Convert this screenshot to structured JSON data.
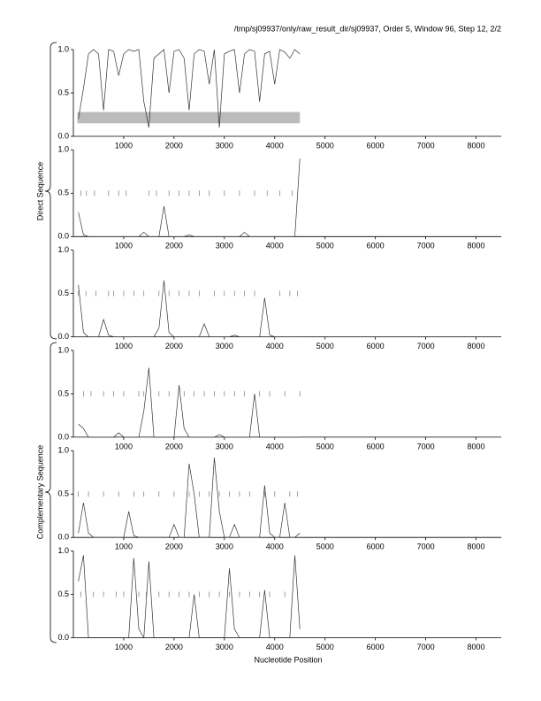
{
  "header": {
    "title": "/tmp/sj09937/only/raw_result_dir/sj09937, Order 5, Window 96, Step 12, 2/2"
  },
  "axis_labels": {
    "x": "Nucleotide Position",
    "direct": "Direct Sequence",
    "complementary": "Complementary Sequence"
  },
  "chart_data": [
    {
      "type": "line",
      "color": "#333333",
      "x": [
        100,
        200,
        300,
        400,
        500,
        600,
        700,
        800,
        900,
        1000,
        1100,
        1200,
        1300,
        1400,
        1500,
        1600,
        1700,
        1800,
        1900,
        2000,
        2100,
        2200,
        2300,
        2400,
        2500,
        2600,
        2700,
        2800,
        2900,
        3000,
        3100,
        3200,
        3300,
        3400,
        3500,
        3600,
        3700,
        3800,
        3900,
        4000,
        4100,
        4200,
        4300,
        4400,
        4500
      ],
      "values": [
        0.2,
        0.55,
        0.95,
        1.0,
        0.95,
        0.3,
        1.0,
        0.98,
        0.7,
        0.95,
        1.0,
        0.98,
        1.0,
        0.4,
        0.1,
        0.9,
        0.95,
        1.0,
        0.5,
        0.98,
        1.0,
        0.9,
        0.3,
        0.95,
        1.0,
        0.98,
        0.6,
        1.0,
        0.1,
        0.95,
        0.98,
        1.0,
        0.5,
        0.95,
        1.0,
        0.98,
        0.4,
        0.95,
        0.98,
        0.6,
        1.0,
        0.97,
        0.9,
        1.0,
        0.95
      ],
      "region": {
        "x": [
          80,
          4500
        ],
        "y": [
          0.15,
          0.28
        ],
        "color": "#bbbbbb"
      },
      "marks": [],
      "xlim": [
        0,
        8500
      ],
      "ylim": [
        0,
        1
      ],
      "xticks": [
        1000,
        2000,
        3000,
        4000,
        5000,
        6000,
        7000,
        8000
      ],
      "yticks": [
        {
          "value": 0,
          "label": "0.0"
        },
        0.5,
        {
          "value": 1,
          "label": "1.0"
        }
      ]
    },
    {
      "type": "line",
      "color": "#333333",
      "x": [
        100,
        200,
        300,
        400,
        500,
        600,
        700,
        800,
        900,
        1000,
        1100,
        1200,
        1300,
        1400,
        1500,
        1600,
        1700,
        1800,
        1900,
        2000,
        2100,
        2200,
        2300,
        2400,
        2500,
        2600,
        2700,
        2800,
        2900,
        3000,
        3100,
        3200,
        3300,
        3400,
        3500,
        3600,
        3700,
        3800,
        3900,
        4000,
        4100,
        4200,
        4300,
        4400,
        4500
      ],
      "values": [
        0.28,
        0.02,
        0,
        0,
        0,
        0,
        0,
        0,
        0,
        0,
        0,
        0,
        0,
        0.05,
        0,
        0,
        0,
        0.35,
        0,
        0,
        0,
        0,
        0.02,
        0,
        0,
        0,
        0,
        0,
        0,
        0,
        0,
        0,
        0,
        0.05,
        0,
        0,
        0,
        0,
        0,
        0,
        0,
        0,
        0,
        0,
        0.9
      ],
      "marks": [
        150,
        260,
        420,
        700,
        900,
        1050,
        1500,
        1650,
        1900,
        2100,
        2300,
        2500,
        2700,
        3000,
        3300,
        3600,
        3850,
        4100,
        4350
      ],
      "xlim": [
        0,
        8500
      ],
      "ylim": [
        0,
        1
      ],
      "xticks": [
        1000,
        2000,
        3000,
        4000,
        5000,
        6000,
        7000,
        8000
      ],
      "yticks": [
        {
          "value": 0,
          "label": "0.0"
        },
        0.5,
        {
          "value": 1,
          "label": "1.0"
        }
      ]
    },
    {
      "type": "line",
      "color": "#333333",
      "x": [
        100,
        200,
        300,
        400,
        500,
        600,
        700,
        800,
        900,
        1000,
        1100,
        1200,
        1300,
        1400,
        1500,
        1600,
        1700,
        1800,
        1900,
        2000,
        2100,
        2200,
        2300,
        2400,
        2500,
        2600,
        2700,
        2800,
        2900,
        3000,
        3100,
        3200,
        3300,
        3400,
        3500,
        3600,
        3700,
        3800,
        3900,
        4000,
        4100,
        4200,
        4300,
        4400,
        4500
      ],
      "values": [
        0.6,
        0.05,
        0,
        0,
        0,
        0.2,
        0.02,
        0,
        0,
        0,
        0,
        0,
        0,
        0,
        0,
        0,
        0.1,
        0.65,
        0.05,
        0,
        0,
        0,
        0,
        0,
        0,
        0.15,
        0,
        0,
        0,
        0,
        0,
        0.02,
        0,
        0,
        0,
        0,
        0,
        0.45,
        0.02,
        0,
        0,
        0,
        0,
        0,
        0
      ],
      "marks": [
        100,
        250,
        450,
        700,
        800,
        1000,
        1200,
        1400,
        1700,
        1900,
        2100,
        2300,
        2500,
        2800,
        3000,
        3200,
        3400,
        3600,
        4100,
        4300,
        4450
      ],
      "xlim": [
        0,
        8500
      ],
      "ylim": [
        0,
        1
      ],
      "xticks": [
        1000,
        2000,
        3000,
        4000,
        5000,
        6000,
        7000,
        8000
      ],
      "yticks": [
        {
          "value": 0,
          "label": "0.0"
        },
        0.5,
        {
          "value": 1,
          "label": "1.0"
        }
      ]
    },
    {
      "type": "line",
      "color": "#333333",
      "x": [
        100,
        200,
        300,
        400,
        500,
        600,
        700,
        800,
        900,
        1000,
        1100,
        1200,
        1300,
        1400,
        1500,
        1600,
        1700,
        1800,
        1900,
        2000,
        2100,
        2200,
        2300,
        2400,
        2500,
        2600,
        2700,
        2800,
        2900,
        3000,
        3100,
        3200,
        3300,
        3400,
        3500,
        3600,
        3700,
        3800,
        3900,
        4000,
        4100,
        4200,
        4300,
        4400,
        4500
      ],
      "values": [
        0.15,
        0.1,
        0,
        0,
        0,
        0,
        0,
        0,
        0.05,
        0,
        0,
        0,
        0,
        0.3,
        0.8,
        0,
        0,
        0,
        0,
        0,
        0.6,
        0.1,
        0,
        0,
        0,
        0,
        0,
        0,
        0.03,
        0,
        0,
        0,
        0,
        0,
        0,
        0.5,
        0,
        0,
        0,
        0,
        0,
        0,
        0,
        0,
        0
      ],
      "marks": [
        200,
        350,
        600,
        800,
        1000,
        1300,
        1400,
        1700,
        1900,
        2200,
        2400,
        2600,
        2800,
        3000,
        3200,
        3400,
        3700,
        3900,
        4200,
        4500
      ],
      "xlim": [
        0,
        8500
      ],
      "ylim": [
        0,
        1
      ],
      "xticks": [
        1000,
        2000,
        3000,
        4000,
        5000,
        6000,
        7000,
        8000
      ],
      "yticks": [
        {
          "value": 0,
          "label": "0.0"
        },
        0.5,
        {
          "value": 1,
          "label": "1.0"
        }
      ]
    },
    {
      "type": "line",
      "color": "#333333",
      "x": [
        100,
        200,
        300,
        400,
        500,
        600,
        700,
        800,
        900,
        1000,
        1100,
        1200,
        1300,
        1400,
        1500,
        1600,
        1700,
        1800,
        1900,
        2000,
        2100,
        2200,
        2300,
        2400,
        2500,
        2600,
        2700,
        2800,
        2900,
        3000,
        3100,
        3200,
        3300,
        3400,
        3500,
        3600,
        3700,
        3800,
        3900,
        4000,
        4100,
        4200,
        4300,
        4400,
        4500
      ],
      "values": [
        0.05,
        0.4,
        0.05,
        0,
        0,
        0,
        0,
        0,
        0,
        0,
        0.3,
        0.02,
        0,
        0,
        0,
        0,
        0,
        0,
        0,
        0.15,
        0,
        0,
        0.85,
        0.5,
        0,
        0,
        0,
        0.92,
        0.3,
        0,
        0,
        0.15,
        0,
        0,
        0,
        0,
        0,
        0.6,
        0.05,
        0,
        0,
        0.4,
        0,
        0,
        0.05
      ],
      "marks": [
        100,
        300,
        600,
        900,
        1200,
        1400,
        1700,
        2000,
        2300,
        2500,
        2700,
        2900,
        3100,
        3300,
        3500,
        3800,
        4000,
        4300,
        4450
      ],
      "xlim": [
        0,
        8500
      ],
      "ylim": [
        0,
        1
      ],
      "xticks": [
        1000,
        2000,
        3000,
        4000,
        5000,
        6000,
        7000,
        8000
      ],
      "yticks": [
        {
          "value": 0,
          "label": "0.0"
        },
        0.5,
        {
          "value": 1,
          "label": "1.0"
        }
      ]
    },
    {
      "type": "line",
      "color": "#333333",
      "x": [
        100,
        200,
        300,
        400,
        500,
        600,
        700,
        800,
        900,
        1000,
        1100,
        1200,
        1300,
        1400,
        1500,
        1600,
        1700,
        1800,
        1900,
        2000,
        2100,
        2200,
        2300,
        2400,
        2500,
        2600,
        2700,
        2800,
        2900,
        3000,
        3100,
        3200,
        3300,
        3400,
        3500,
        3600,
        3700,
        3800,
        3900,
        4000,
        4100,
        4200,
        4300,
        4400,
        4500
      ],
      "values": [
        0.65,
        0.95,
        0,
        0,
        0,
        0,
        0,
        0,
        0,
        0,
        0,
        0.92,
        0.1,
        0,
        0.88,
        0,
        0,
        0,
        0,
        0,
        0,
        0,
        0,
        0.5,
        0,
        0,
        0,
        0,
        0,
        0,
        0.8,
        0.1,
        0,
        0,
        0,
        0,
        0,
        0.55,
        0,
        0,
        0,
        0,
        0,
        0.95,
        0.1
      ],
      "marks": [
        150,
        400,
        600,
        850,
        1000,
        1300,
        1450,
        1700,
        1900,
        2100,
        2300,
        2500,
        2700,
        2900,
        3100,
        3300,
        3500,
        3700,
        3900,
        4200
      ],
      "xlim": [
        0,
        8500
      ],
      "ylim": [
        0,
        1
      ],
      "xticks": [
        1000,
        2000,
        3000,
        4000,
        5000,
        6000,
        7000,
        8000
      ],
      "yticks": [
        {
          "value": 0,
          "label": "0.0"
        },
        0.5,
        {
          "value": 1,
          "label": "1.0"
        }
      ]
    }
  ]
}
